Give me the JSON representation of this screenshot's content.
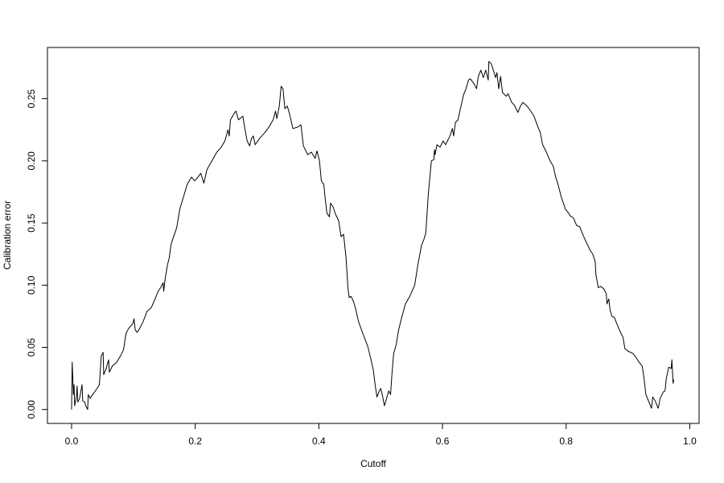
{
  "chart_data": {
    "type": "line",
    "x_label": "Cutoff",
    "y_label": "Calibration error",
    "color": "#000000",
    "xlim": [
      -0.039,
      1.015
    ],
    "ylim": [
      -0.0112,
      0.2912
    ],
    "xticks": [
      {
        "value": 0,
        "label": "0.0"
      },
      0.2,
      0.4,
      0.6,
      0.8,
      {
        "value": 1,
        "label": "1.0"
      }
    ],
    "yticks": [
      {
        "value": 0,
        "label": "0.00"
      },
      0.05,
      {
        "value": 0.1,
        "label": "0.10"
      },
      0.15,
      {
        "value": 0.2,
        "label": "0.20"
      },
      0.25
    ],
    "grid": false,
    "x": [
      0,
      0.001,
      0.003,
      0.004,
      0.005,
      0.008,
      0.009,
      0.01,
      0.013,
      0.017,
      0.018,
      0.021,
      0.023,
      0.026,
      0.027,
      0.03,
      0.034,
      0.04,
      0.045,
      0.048,
      0.051,
      0.052,
      0.056,
      0.06,
      0.061,
      0.066,
      0.073,
      0.079,
      0.084,
      0.088,
      0.092,
      0.099,
      0.101,
      0.103,
      0.106,
      0.11,
      0.116,
      0.122,
      0.129,
      0.135,
      0.14,
      0.144,
      0.148,
      0.149,
      0.151,
      0.155,
      0.158,
      0.161,
      0.165,
      0.17,
      0.175,
      0.181,
      0.187,
      0.194,
      0.199,
      0.203,
      0.209,
      0.214,
      0.219,
      0.227,
      0.235,
      0.242,
      0.248,
      0.253,
      0.255,
      0.257,
      0.264,
      0.266,
      0.27,
      0.277,
      0.281,
      0.284,
      0.288,
      0.291,
      0.294,
      0.297,
      0.304,
      0.313,
      0.319,
      0.326,
      0.33,
      0.332,
      0.336,
      0.339,
      0.342,
      0.345,
      0.349,
      0.353,
      0.358,
      0.365,
      0.371,
      0.375,
      0.382,
      0.388,
      0.394,
      0.397,
      0.401,
      0.404,
      0.408,
      0.41,
      0.413,
      0.417,
      0.419,
      0.423,
      0.427,
      0.432,
      0.436,
      0.44,
      0.444,
      0.447,
      0.449,
      0.452,
      0.456,
      0.46,
      0.464,
      0.469,
      0.475,
      0.479,
      0.482,
      0.488,
      0.491,
      0.494,
      0.497,
      0.5,
      0.503,
      0.506,
      0.509,
      0.513,
      0.516,
      0.518,
      0.521,
      0.525,
      0.529,
      0.534,
      0.54,
      0.547,
      0.555,
      0.56,
      0.566,
      0.57,
      0.573,
      0.577,
      0.582,
      0.586,
      0.587,
      0.588,
      0.591,
      0.596,
      0.601,
      0.605,
      0.608,
      0.612,
      0.616,
      0.618,
      0.621,
      0.625,
      0.629,
      0.634,
      0.638,
      0.642,
      0.645,
      0.651,
      0.655,
      0.658,
      0.662,
      0.666,
      0.67,
      0.674,
      0.675,
      0.679,
      0.686,
      0.688,
      0.691,
      0.694,
      0.697,
      0.703,
      0.706,
      0.712,
      0.716,
      0.722,
      0.726,
      0.73,
      0.735,
      0.74,
      0.748,
      0.753,
      0.758,
      0.762,
      0.768,
      0.774,
      0.779,
      0.783,
      0.787,
      0.792,
      0.799,
      0.804,
      0.806,
      0.812,
      0.817,
      0.822,
      0.826,
      0.832,
      0.839,
      0.843,
      0.847,
      0.848,
      0.852,
      0.856,
      0.861,
      0.865,
      0.866,
      0.869,
      0.871,
      0.874,
      0.878,
      0.882,
      0.887,
      0.892,
      0.895,
      0.9,
      0.908,
      0.913,
      0.918,
      0.923,
      0.926,
      0.929,
      0.934,
      0.938,
      0.94,
      0.944,
      0.948,
      0.949,
      0.952,
      0.957,
      0.96,
      0.962,
      0.966,
      0.97,
      0.971,
      0.973,
      0.974
    ],
    "values": [
      0,
      0.038,
      0.012,
      0.02,
      0.003,
      0.011,
      0.019,
      0.006,
      0.009,
      0.02,
      0.007,
      0.006,
      0.003,
      0.0,
      0.012,
      0.009,
      0.012,
      0.016,
      0.02,
      0.043,
      0.046,
      0.028,
      0.033,
      0.04,
      0.03,
      0.035,
      0.038,
      0.043,
      0.048,
      0.061,
      0.065,
      0.069,
      0.073,
      0.064,
      0.062,
      0.065,
      0.071,
      0.079,
      0.082,
      0.089,
      0.095,
      0.098,
      0.102,
      0.095,
      0.104,
      0.116,
      0.122,
      0.133,
      0.139,
      0.146,
      0.161,
      0.171,
      0.181,
      0.187,
      0.184,
      0.186,
      0.19,
      0.182,
      0.193,
      0.2,
      0.207,
      0.211,
      0.216,
      0.225,
      0.22,
      0.233,
      0.239,
      0.24,
      0.233,
      0.236,
      0.224,
      0.216,
      0.212,
      0.218,
      0.22,
      0.213,
      0.218,
      0.223,
      0.227,
      0.233,
      0.24,
      0.234,
      0.244,
      0.26,
      0.258,
      0.242,
      0.244,
      0.237,
      0.226,
      0.227,
      0.229,
      0.212,
      0.205,
      0.207,
      0.202,
      0.208,
      0.2,
      0.184,
      0.181,
      0.171,
      0.158,
      0.155,
      0.166,
      0.163,
      0.157,
      0.152,
      0.139,
      0.141,
      0.122,
      0.098,
      0.09,
      0.091,
      0.087,
      0.08,
      0.071,
      0.064,
      0.056,
      0.051,
      0.045,
      0.032,
      0.02,
      0.01,
      0.014,
      0.017,
      0.011,
      0.003,
      0.008,
      0.015,
      0.012,
      0.027,
      0.045,
      0.052,
      0.064,
      0.074,
      0.085,
      0.091,
      0.1,
      0.116,
      0.132,
      0.137,
      0.142,
      0.173,
      0.2,
      0.201,
      0.209,
      0.205,
      0.213,
      0.211,
      0.216,
      0.213,
      0.216,
      0.22,
      0.226,
      0.22,
      0.231,
      0.233,
      0.242,
      0.253,
      0.258,
      0.265,
      0.266,
      0.262,
      0.258,
      0.268,
      0.273,
      0.267,
      0.273,
      0.265,
      0.28,
      0.278,
      0.267,
      0.271,
      0.258,
      0.268,
      0.255,
      0.252,
      0.254,
      0.247,
      0.245,
      0.239,
      0.244,
      0.247,
      0.245,
      0.242,
      0.236,
      0.229,
      0.223,
      0.213,
      0.207,
      0.2,
      0.196,
      0.187,
      0.181,
      0.171,
      0.161,
      0.158,
      0.156,
      0.154,
      0.148,
      0.147,
      0.142,
      0.135,
      0.128,
      0.125,
      0.119,
      0.109,
      0.098,
      0.099,
      0.097,
      0.093,
      0.085,
      0.089,
      0.08,
      0.075,
      0.074,
      0.069,
      0.063,
      0.058,
      0.049,
      0.047,
      0.045,
      0.042,
      0.038,
      0.035,
      0.025,
      0.012,
      0.006,
      0.001,
      0.01,
      0.007,
      0.002,
      0.001,
      0.009,
      0.014,
      0.015,
      0.025,
      0.034,
      0.033,
      0.04,
      0.021,
      0.024
    ]
  }
}
